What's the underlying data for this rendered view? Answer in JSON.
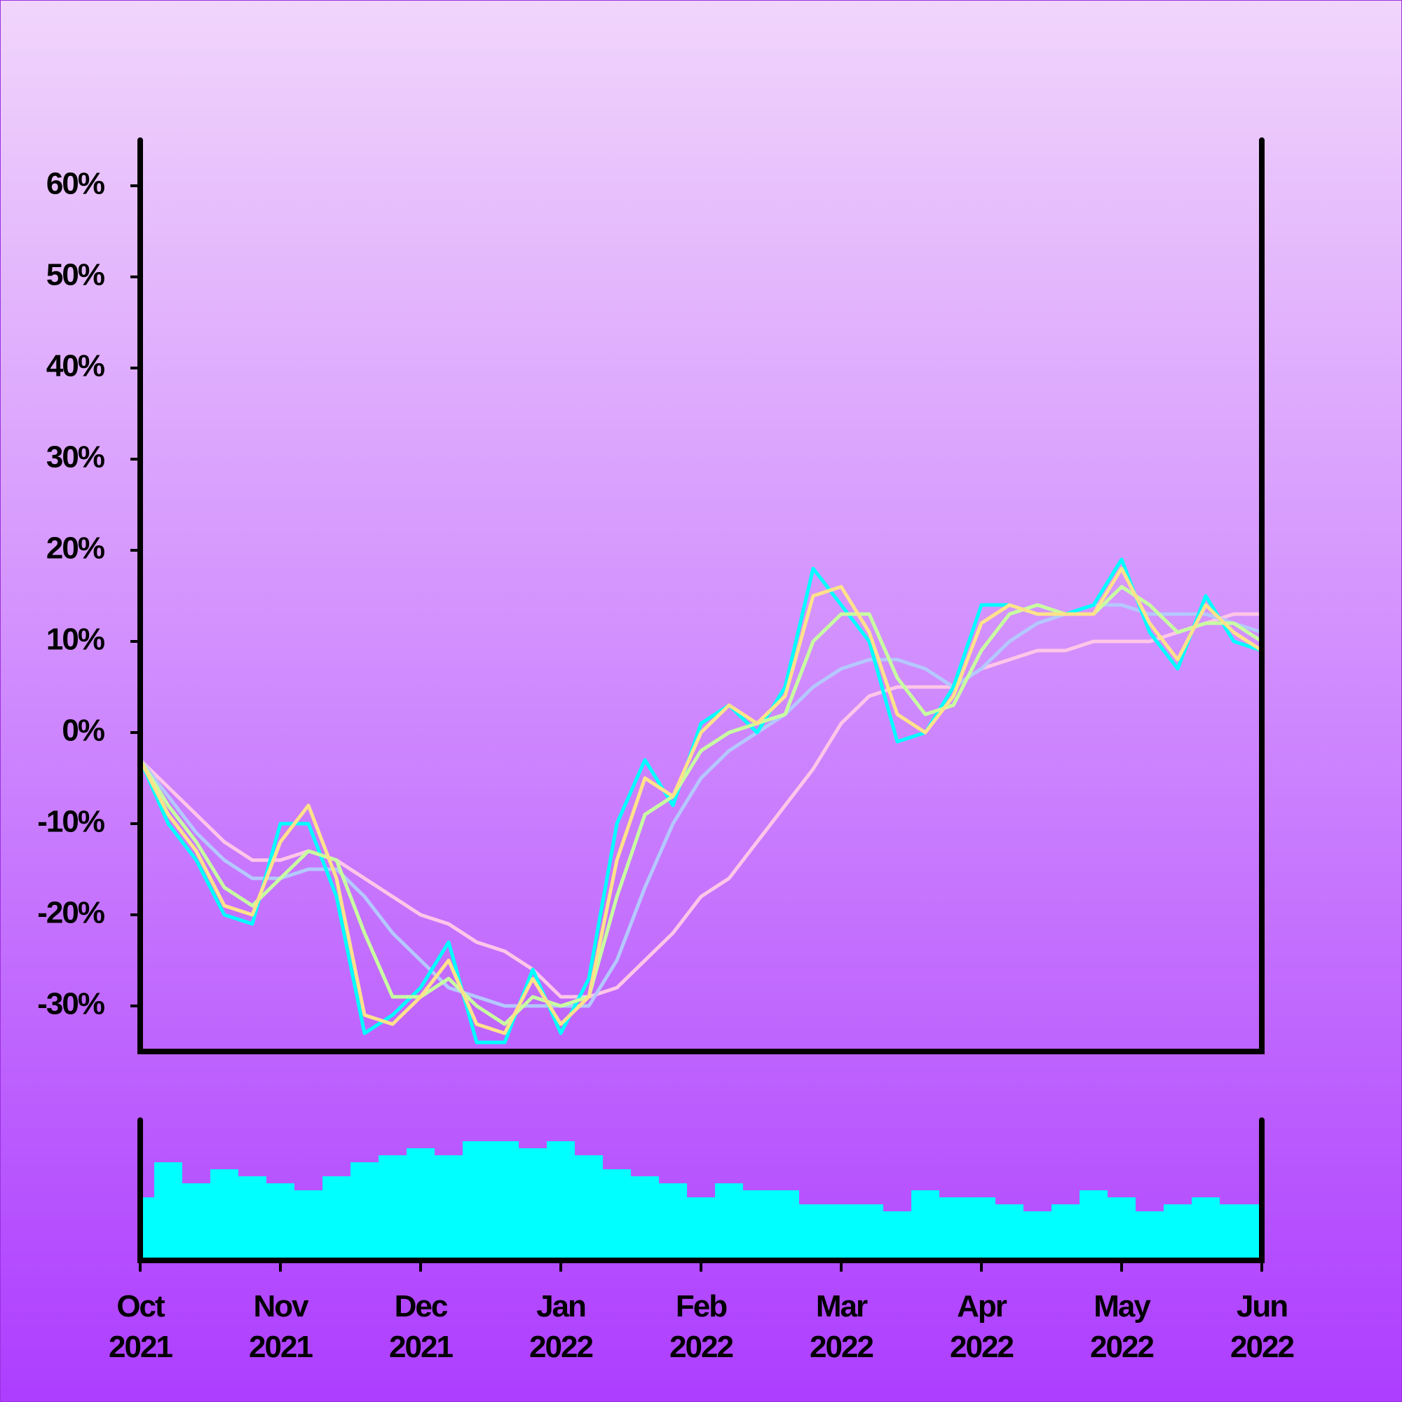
{
  "chart_data": {
    "type": "line",
    "x": [
      0,
      0.2,
      0.4,
      0.6,
      0.8,
      1,
      1.2,
      1.4,
      1.6,
      1.8,
      2,
      2.2,
      2.4,
      2.6,
      2.8,
      3,
      3.2,
      3.4,
      3.6,
      3.8,
      4,
      4.2,
      4.4,
      4.6,
      4.8,
      5,
      5.2,
      5.4,
      5.6,
      5.8,
      6,
      6.2,
      6.4,
      6.6,
      6.8,
      7,
      7.2,
      7.4,
      7.6,
      7.8,
      8
    ],
    "xlim": [
      0,
      8
    ],
    "xticks": [
      {
        "value": 0,
        "label": "Oct\n2021"
      },
      {
        "value": 1,
        "label": "Nov\n2021"
      },
      {
        "value": 2,
        "label": "Dec\n2021"
      },
      {
        "value": 3,
        "label": "Jan\n2022"
      },
      {
        "value": 4,
        "label": "Feb\n2022"
      },
      {
        "value": 5,
        "label": "Mar\n2022"
      },
      {
        "value": 6,
        "label": "Apr\n2022"
      },
      {
        "value": 7,
        "label": "May\n2022"
      },
      {
        "value": 8,
        "label": "Jun\n2022"
      }
    ],
    "ylim": [
      -35,
      65
    ],
    "yticks": [
      {
        "value": -30,
        "label": "-30%"
      },
      {
        "value": -20,
        "label": "-20%"
      },
      {
        "value": -10,
        "label": "-10%"
      },
      {
        "value": 0,
        "label": "0%"
      },
      {
        "value": 10,
        "label": "10%"
      },
      {
        "value": 20,
        "label": "20%"
      },
      {
        "value": 30,
        "label": "30%"
      },
      {
        "value": 40,
        "label": "40%"
      },
      {
        "value": 50,
        "label": "50%"
      },
      {
        "value": 60,
        "label": "60%"
      }
    ],
    "series": [
      {
        "color": "#ffc6e8",
        "values": [
          -3,
          -6,
          -9,
          -12,
          -14,
          -14,
          -13,
          -14,
          -16,
          -18,
          -20,
          -21,
          -23,
          -24,
          -26,
          -29,
          -29,
          -28,
          -25,
          -22,
          -18,
          -16,
          -12,
          -8,
          -4,
          1,
          4,
          5,
          5,
          5,
          7,
          8,
          9,
          9,
          10,
          10,
          10,
          11,
          12,
          13,
          13
        ]
      },
      {
        "color": "#b4c8ff",
        "values": [
          -3,
          -7,
          -11,
          -14,
          -16,
          -16,
          -15,
          -15,
          -18,
          -22,
          -25,
          -28,
          -29,
          -30,
          -30,
          -30,
          -30,
          -25,
          -17,
          -10,
          -5,
          -2,
          0,
          2,
          5,
          7,
          8,
          8,
          7,
          5,
          7,
          10,
          12,
          13,
          14,
          14,
          13,
          13,
          13,
          12,
          11
        ]
      },
      {
        "color": "#00ffff",
        "values": [
          -3,
          -10,
          -14,
          -20,
          -21,
          -10,
          -10,
          -18,
          -33,
          -31,
          -28,
          -23,
          -34,
          -34,
          -26,
          -33,
          -27,
          -10,
          -3,
          -8,
          1,
          3,
          0,
          5,
          18,
          14,
          10,
          -1,
          0,
          5,
          14,
          14,
          13,
          13,
          14,
          19,
          11,
          7,
          15,
          10,
          9
        ]
      },
      {
        "color": "#c8ffa0",
        "values": [
          -3,
          -8,
          -12,
          -17,
          -19,
          -16,
          -13,
          -14,
          -22,
          -29,
          -29,
          -27,
          -30,
          -32,
          -29,
          -30,
          -29,
          -18,
          -9,
          -7,
          -2,
          0,
          1,
          2,
          10,
          13,
          13,
          6,
          2,
          3,
          9,
          13,
          14,
          13,
          13,
          16,
          14,
          11,
          12,
          12,
          10
        ]
      },
      {
        "color": "#ffe28a",
        "values": [
          -3,
          -9,
          -13,
          -19,
          -20,
          -12,
          -8,
          -16,
          -31,
          -32,
          -29,
          -25,
          -32,
          -33,
          -27,
          -32,
          -29,
          -14,
          -5,
          -7,
          0,
          3,
          1,
          4,
          15,
          16,
          11,
          2,
          0,
          4,
          12,
          14,
          13,
          13,
          13,
          18,
          12,
          8,
          14,
          11,
          9
        ]
      }
    ],
    "volume": {
      "color": "#00ffff",
      "ylim": [
        0,
        100
      ],
      "values": [
        45,
        70,
        55,
        65,
        60,
        55,
        50,
        60,
        70,
        75,
        80,
        75,
        85,
        85,
        80,
        85,
        75,
        65,
        60,
        55,
        45,
        55,
        50,
        50,
        40,
        40,
        40,
        35,
        50,
        45,
        45,
        40,
        35,
        40,
        50,
        45,
        35,
        40,
        45,
        40,
        40
      ]
    }
  }
}
